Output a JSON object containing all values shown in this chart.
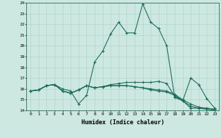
{
  "title": "",
  "xlabel": "Humidex (Indice chaleur)",
  "bg_color": "#cce8e0",
  "line_color": "#1a6b5a",
  "grid_color": "#aacfc7",
  "xlim": [
    -0.5,
    23.5
  ],
  "ylim": [
    14,
    24
  ],
  "xticks": [
    0,
    1,
    2,
    3,
    4,
    5,
    6,
    7,
    8,
    9,
    10,
    11,
    12,
    13,
    14,
    15,
    16,
    17,
    18,
    19,
    20,
    21,
    22,
    23
  ],
  "yticks": [
    14,
    15,
    16,
    17,
    18,
    19,
    20,
    21,
    22,
    23,
    24
  ],
  "series": [
    [
      15.8,
      15.9,
      16.3,
      16.4,
      16.0,
      15.8,
      14.6,
      15.4,
      18.5,
      19.5,
      21.1,
      22.2,
      21.2,
      21.2,
      23.9,
      22.2,
      21.6,
      20.0,
      15.2,
      14.9,
      17.0,
      16.4,
      15.1,
      14.2
    ],
    [
      15.8,
      15.9,
      16.3,
      16.4,
      15.8,
      15.6,
      15.9,
      16.3,
      16.1,
      16.2,
      16.4,
      16.5,
      16.6,
      16.6,
      16.6,
      16.6,
      16.7,
      16.5,
      15.3,
      14.9,
      14.2,
      14.2,
      14.2,
      14.1
    ],
    [
      15.8,
      15.9,
      16.3,
      16.4,
      15.8,
      15.6,
      15.9,
      16.3,
      16.1,
      16.2,
      16.3,
      16.3,
      16.3,
      16.2,
      16.1,
      16.0,
      15.9,
      15.8,
      15.5,
      15.0,
      14.6,
      14.3,
      14.2,
      14.1
    ],
    [
      15.8,
      15.9,
      16.3,
      16.4,
      15.8,
      15.6,
      15.9,
      16.3,
      16.1,
      16.2,
      16.3,
      16.3,
      16.3,
      16.2,
      16.1,
      15.9,
      15.8,
      15.7,
      15.4,
      14.9,
      14.4,
      14.2,
      14.1,
      14.0
    ]
  ]
}
